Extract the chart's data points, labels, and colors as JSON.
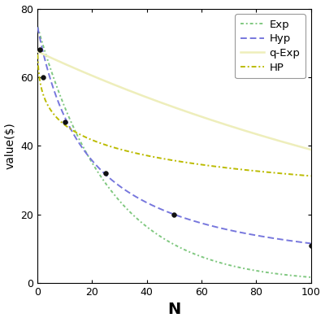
{
  "title": "",
  "xlabel": "N",
  "ylabel": "value($)",
  "xlim": [
    0,
    100
  ],
  "ylim": [
    0,
    80
  ],
  "xticks": [
    0,
    20,
    40,
    60,
    80,
    100
  ],
  "yticks": [
    0,
    20,
    40,
    60,
    80
  ],
  "data_points_x": [
    1,
    2,
    10,
    25,
    50,
    100
  ],
  "data_points_y": [
    68,
    60,
    47,
    32,
    20,
    11
  ],
  "exp_color": "#80C880",
  "hyp_color": "#7777DD",
  "qexp_color": "#EEEEBB",
  "hp_color": "#BBBB00",
  "bg_color": "#FFFFFF",
  "exp_params": {
    "b": 0.038
  },
  "hyp_params": {
    "k": 0.055
  },
  "qexp_params": {
    "A": 75,
    "beta": 0.9,
    "delta": 0.9945
  },
  "hp_params": {
    "A": 75,
    "k": 0.28,
    "s": 0.35
  },
  "legend_labels": [
    "Exp",
    "Hyp",
    "q-Exp",
    "HP"
  ],
  "point_color": "#111111",
  "point_size": 7
}
